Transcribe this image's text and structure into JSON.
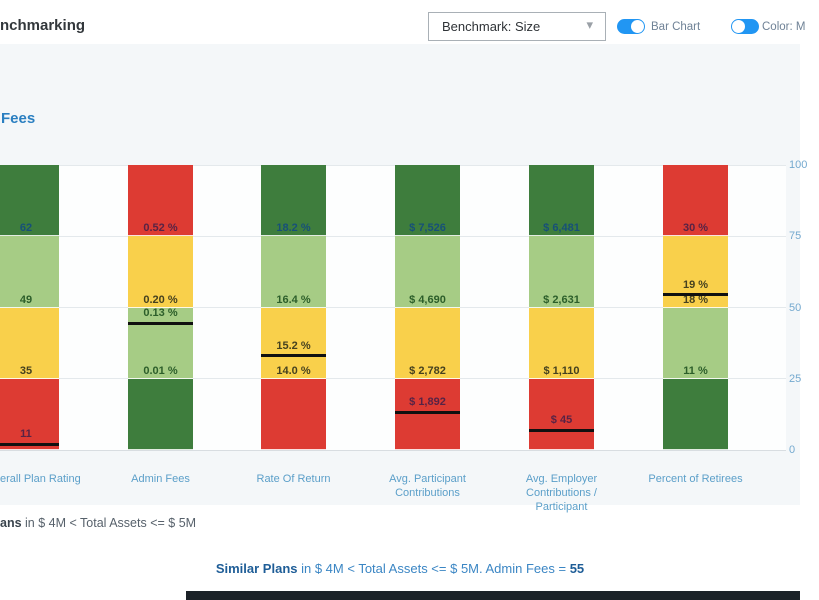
{
  "header": {
    "title": "nchmarking",
    "benchmark_select_value": "Benchmark: Size",
    "bar_chart_toggle_label": "Bar Chart",
    "color_toggle_label": "Color: M",
    "toggle_accent": "#2196f3"
  },
  "section": {
    "title": "Fees"
  },
  "chart_data": {
    "type": "stacked-bar",
    "description": "Benchmark quartile columns (0-100 percentile); black line = this plan's position; labels at quartile boundaries show metric values",
    "y_axis_ticks": [
      "100",
      "75",
      "50",
      "25",
      "0"
    ],
    "y_max": 100,
    "segment_size": 25,
    "bars": [
      {
        "name_lines": [
          "erall Plan Rating"
        ],
        "center": 26,
        "clip_left": true,
        "inverted": false,
        "boundaries": [
          {
            "at": 75,
            "text": "62"
          },
          {
            "at": 50,
            "text": "49"
          },
          {
            "at": 25,
            "text": "35"
          }
        ],
        "marker": {
          "value": 2,
          "text": "11"
        }
      },
      {
        "name_lines": [
          "Admin Fees"
        ],
        "center": 160.5,
        "inverted": true,
        "boundaries": [
          {
            "at": 75,
            "text": "0.52 %"
          },
          {
            "at": 50,
            "text": "0.20 %"
          },
          {
            "at": 25,
            "text": "0.01 %"
          }
        ],
        "marker": {
          "value": 44.5,
          "text": "0.13 %"
        }
      },
      {
        "name_lines": [
          "Rate Of Return"
        ],
        "center": 293.5,
        "inverted": false,
        "boundaries": [
          {
            "at": 75,
            "text": "18.2 %"
          },
          {
            "at": 50,
            "text": "16.4 %"
          },
          {
            "at": 25,
            "text": "14.0 %"
          }
        ],
        "marker": {
          "value": 33,
          "text": "15.2 %"
        }
      },
      {
        "name_lines": [
          "Avg. Participant",
          "Contributions"
        ],
        "center": 427.5,
        "inverted": false,
        "boundaries": [
          {
            "at": 75,
            "text": "$ 7,526"
          },
          {
            "at": 50,
            "text": "$ 4,690"
          },
          {
            "at": 25,
            "text": "$ 2,782"
          }
        ],
        "marker": {
          "value": 13.3,
          "text": "$ 1,892"
        }
      },
      {
        "name_lines": [
          "Avg. Employer",
          "Contributions /",
          "Participant"
        ],
        "center": 561.5,
        "inverted": false,
        "boundaries": [
          {
            "at": 75,
            "text": "$ 6,481"
          },
          {
            "at": 50,
            "text": "$ 2,631"
          },
          {
            "at": 25,
            "text": "$ 1,110"
          }
        ],
        "marker": {
          "value": 7,
          "text": "$ 45"
        }
      },
      {
        "name_lines": [
          "Percent of Retirees"
        ],
        "center": 695.5,
        "inverted": true,
        "boundaries": [
          {
            "at": 75,
            "text": "30 %"
          },
          {
            "at": 50,
            "text": "18 %"
          },
          {
            "at": 25,
            "text": "11 %"
          }
        ],
        "marker": {
          "value": 54.5,
          "text": "19 %"
        }
      }
    ]
  },
  "palette": {
    "dark_green": "#3e7d3d",
    "light_green": "#a6cc85",
    "yellow": "#f9d04b",
    "red": "#dd3b33",
    "marker": "#101010",
    "label_on_dark_green": "#175078",
    "label_on_light_green": "#2c5e2a",
    "label_on_yellow": "#45411f",
    "label_on_red": "#582345"
  },
  "footnotes": {
    "left_bold": "ans",
    "left_rest": " in $ 4M < Total Assets <= $ 5M",
    "center_bold1": "Similar Plans",
    "center_mid": " in $ 4M < Total Assets <= $ 5M. Admin Fees = ",
    "center_bold2": "55"
  }
}
